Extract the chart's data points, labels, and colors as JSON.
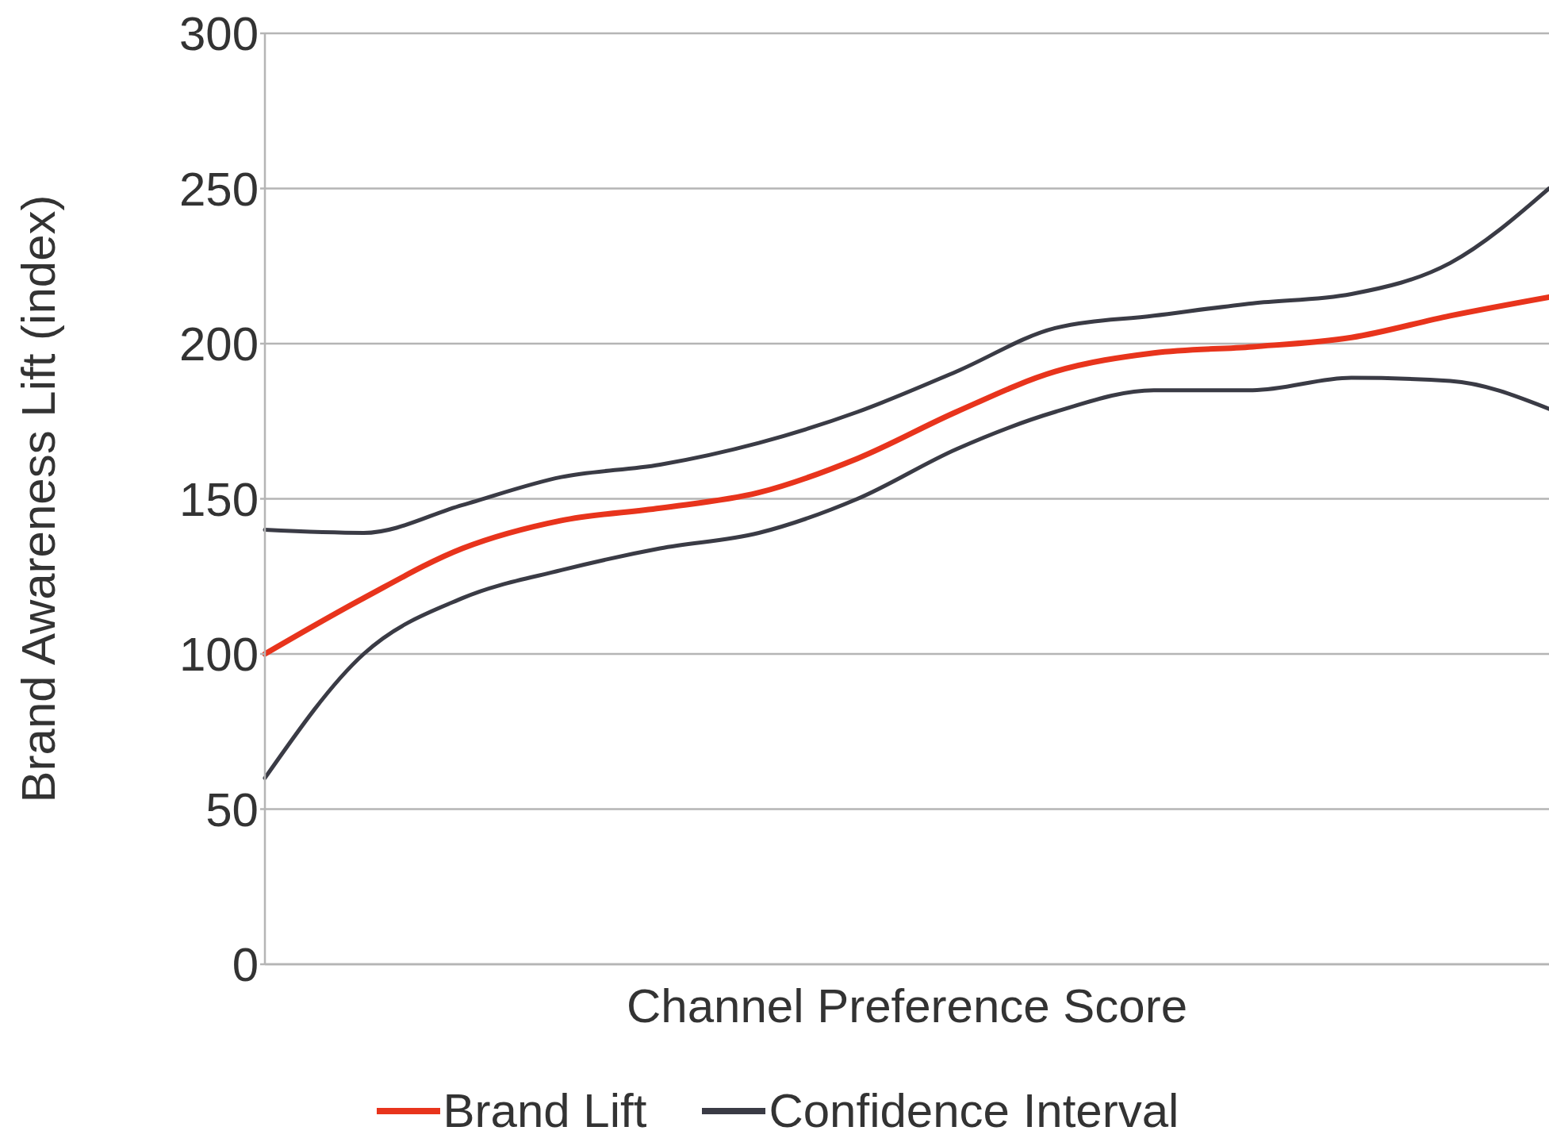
{
  "chart_data": {
    "type": "line",
    "xlabel": "Channel Preference Score",
    "ylabel": "Brand Awareness Lift (index)",
    "categories": [
      null,
      null,
      null,
      null,
      null,
      null,
      null,
      null,
      null,
      null,
      null,
      null,
      null,
      null
    ],
    "series": [
      {
        "name": "Brand Lift",
        "color": "#e8341c",
        "values": [
          100,
          118,
          134,
          143,
          147,
          152,
          163,
          178,
          191,
          197,
          199,
          202,
          209,
          215
        ]
      },
      {
        "name": "Confidence Interval",
        "color": "#3a3b45",
        "values": [
          140,
          139,
          148,
          157,
          161,
          168,
          178,
          191,
          205,
          209,
          213,
          216,
          226,
          250
        ]
      },
      {
        "color": "#3a3b45",
        "values": [
          60,
          100,
          118,
          127,
          134,
          139,
          150,
          166,
          178,
          185,
          185,
          189,
          188,
          179
        ]
      }
    ],
    "ylim": [
      0,
      300
    ],
    "yticks": [
      0,
      50,
      100,
      150,
      200,
      250,
      300
    ],
    "grid": "y",
    "legend": "bottom",
    "marker": "none",
    "line_style": "solid"
  }
}
